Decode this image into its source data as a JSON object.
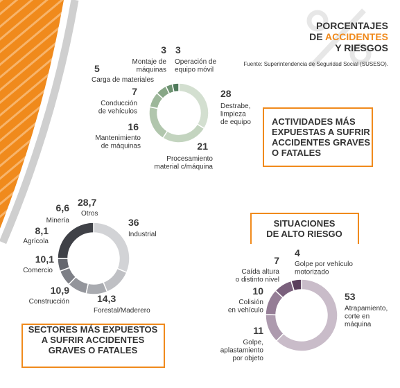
{
  "header": {
    "line1": "PORCENTAJES",
    "line2_prefix": "DE",
    "highlight": "ACCIDENTES",
    "line3": "Y RIESGOS",
    "source": "Fuente: Superintendencia de Seguridad Social (SUSESO)."
  },
  "chart_data": [
    {
      "type": "pie",
      "title": "ACTIVIDADES MÁS\nEXPUESTAS A SUFRIR\nACCIDENTES GRAVES\nO FATALES",
      "categories": [
        "Destrabe,\nlimpieza\nde equipo",
        "Procesamiento\nmaterial c/máquina",
        "Mantenimiento\nde máquinas",
        "Conducción\nde vehículos",
        "Carga de materiales",
        "Montaje de\nmáquinas",
        "Operación de\nequipo móvil"
      ],
      "values": [
        28,
        21,
        16,
        7,
        5,
        3,
        3
      ],
      "colors": [
        "#d3dfd0",
        "#c3d4bf",
        "#b1c6ad",
        "#9db79a",
        "#87a686",
        "#6e9372",
        "#4f7a5b"
      ]
    },
    {
      "type": "pie",
      "title": "SECTORES MÁS EXPUESTOS\nA SUFRIR ACCIDENTES\nGRAVES O FATALES",
      "categories": [
        "Industrial",
        "Forestal/Maderero",
        "Construcción",
        "Comercio",
        "Agrícola",
        "Minería",
        "Otros"
      ],
      "values": [
        36,
        14.3,
        10.9,
        10.1,
        8.1,
        6.6,
        28.7
      ],
      "value_labels": [
        "36",
        "14,3",
        "10,9",
        "10,1",
        "8,1",
        "6,6",
        "28,7"
      ],
      "colors": [
        "#d2d3d6",
        "#bfc0c4",
        "#a9abb0",
        "#93959b",
        "#7d7f86",
        "#65676e",
        "#3f4147"
      ]
    },
    {
      "type": "pie",
      "title": "SITUACIONES\nDE ALTO RIESGO",
      "categories": [
        "Atrapamiento,\ncorte en\nmáquina",
        "Golpe,\naplastamiento\npor objeto",
        "Colisión\nen vehículo",
        "Caída altura\no distinto nivel",
        "Golpe por vehículo\nmotorizado"
      ],
      "values": [
        53,
        11,
        10,
        7,
        4
      ],
      "colors": [
        "#c9bcc9",
        "#ad9aae",
        "#957d96",
        "#7a607c",
        "#5a3f5c"
      ]
    }
  ]
}
